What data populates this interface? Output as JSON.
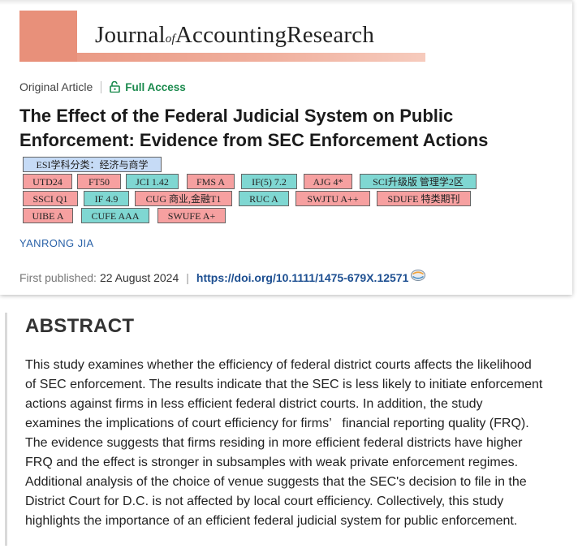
{
  "journal": {
    "name_part1": "Journal",
    "name_of": "of",
    "name_part2": "AccountingResearch"
  },
  "article": {
    "type": "Original Article",
    "access": "Full Access",
    "title_line1": "The Effect of the Federal Judicial System on Public",
    "title_line2": "Enforcement: Evidence from SEC Enforcement Actions",
    "author": "YANRONG JIA",
    "published_label": "First published:",
    "published_date": "22 August 2024",
    "separator": "|",
    "doi": "https://doi.org/10.1111/1475-679X.12571"
  },
  "badges": [
    {
      "text": "ESI学科分类：经济与商学",
      "color": "#c6dbf6"
    },
    {
      "text": "UTD24",
      "color": "#f6a0a0"
    },
    {
      "text": "FT50",
      "color": "#f6a0a0"
    },
    {
      "text": "JCI 1.42",
      "color": "#7fd7d2"
    },
    {
      "text": "FMS A",
      "color": "#f6a0a0"
    },
    {
      "text": "IF(5) 7.2",
      "color": "#7fd7d2"
    },
    {
      "text": "AJG 4*",
      "color": "#f6a0a0"
    },
    {
      "text": "SCI升级版 管理学2区",
      "color": "#7fd7d2"
    },
    {
      "text": "SSCI Q1",
      "color": "#f6a0a0"
    },
    {
      "text": "IF 4.9",
      "color": "#7fd7d2"
    },
    {
      "text": "CUG 商业,金融T1",
      "color": "#f6a0a0"
    },
    {
      "text": "RUC A",
      "color": "#7fd7d2"
    },
    {
      "text": "SWJTU A++",
      "color": "#f6a0a0"
    },
    {
      "text": "SDUFE 特类期刊",
      "color": "#f6a0a0"
    },
    {
      "text": "UIBE A",
      "color": "#f6a0a0"
    },
    {
      "text": "CUFE AAA",
      "color": "#7fd7d2"
    },
    {
      "text": "SWUFE A+",
      "color": "#f6a0a0"
    }
  ],
  "abstract": {
    "heading": "ABSTRACT",
    "lines": [
      "This study examines whether the efficiency of federal district courts affects the likelihood",
      "of SEC enforcement. The results indicate that the SEC is less likely to initiate enforcement",
      "actions against firms in less efficient federal district courts. In addition, the study",
      "examines the implications of court efficiency for firms’   financial reporting quality (FRQ).",
      "The evidence suggests that firms residing in more efficient federal districts have higher",
      "FRQ and the effect is stronger in subsamples with weak private enforcement regimes.",
      "Additional analysis of the choice of venue suggests that the SEC's decision to file in the",
      "District Court for D.C. is not affected by local court efficiency. Collectively, this study",
      "highlights the importance of an efficient federal judicial system for public enforcement."
    ]
  },
  "colors": {
    "banner": "#e8907a",
    "access_green": "#1a8a4d",
    "author_blue": "#2a62a8",
    "doi_blue": "#1d4f91"
  },
  "icons": {
    "access": "lock-open-icon",
    "doi": "crossref-icon"
  }
}
